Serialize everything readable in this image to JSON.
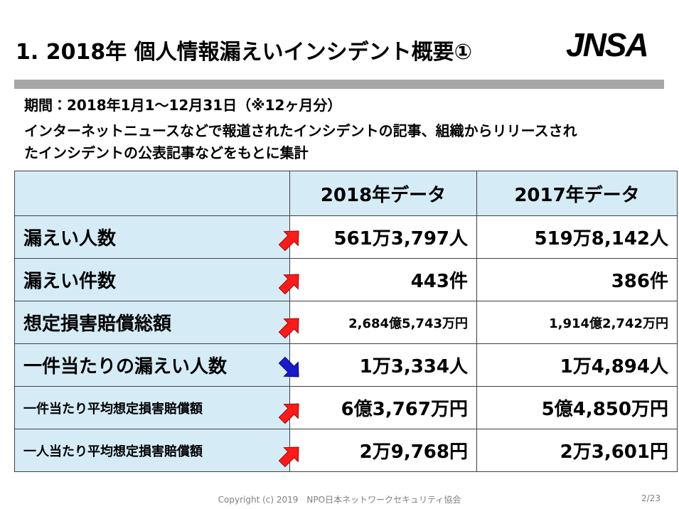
{
  "header": {
    "title": "1. 2018年 個人情報漏えいインシデント概要①",
    "logo": "JNSA"
  },
  "description": [
    "期間：2018年1月1～12月31日（※12ヶ月分）",
    "インターネットニュースなどで報道されたインシデントの記事、組織からリリースされ",
    "たインシデントの公表記事などをもとに集計"
  ],
  "table": {
    "headers": [
      "2018年データ",
      "2017年データ"
    ],
    "rows": [
      {
        "label": "漏えい人数",
        "values": [
          "561万3,797人",
          "519万8,142人"
        ]
      },
      {
        "label": "漏えい件数",
        "values": [
          "443件",
          "386件"
        ]
      },
      {
        "label": "想定損害賠償総額",
        "values": [
          "2,684億5,743万円",
          "1,914億2,742万円"
        ]
      },
      {
        "label": "一件当たりの漏えい人数",
        "values": [
          "1万3,334人",
          "1万4,894人"
        ]
      },
      {
        "label": "一件当たり平均想定損害賠償額",
        "values": [
          "6億3,767万円",
          "5億4,850万円"
        ]
      },
      {
        "label": "一人当たり平均想定損害賠償額",
        "values": [
          "2万9,768円",
          "2万3,601円"
        ]
      }
    ]
  },
  "footer": {
    "copyright": "Copyright (c) 2019　NPO日本ネットワークセキュリティ協会",
    "page": "2/23"
  }
}
